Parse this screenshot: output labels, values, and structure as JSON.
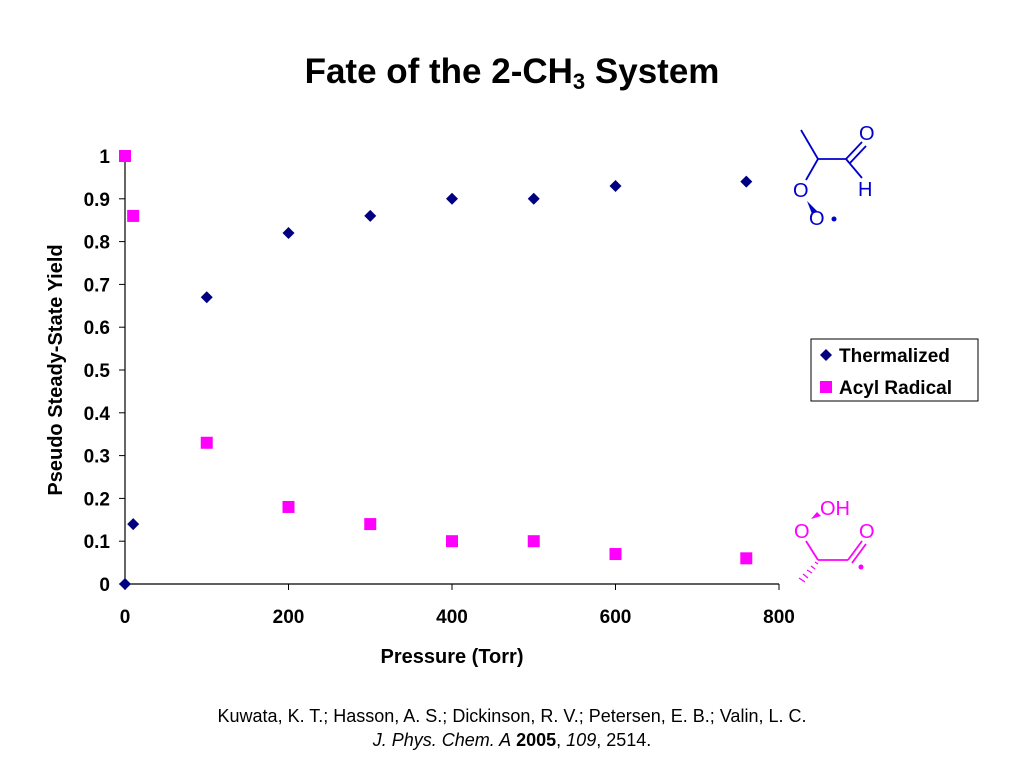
{
  "title": {
    "main": "Fate of the 2-CH",
    "subscript": "3",
    "tail": " System"
  },
  "chart_data": {
    "type": "scatter",
    "xlabel": "Pressure (Torr)",
    "ylabel": "Pseudo Steady-State Yield",
    "xlim": [
      0,
      800
    ],
    "ylim": [
      0,
      1
    ],
    "x_ticks": [
      "0",
      "200",
      "400",
      "600",
      "800"
    ],
    "y_ticks": [
      "0",
      "0.1",
      "0.2",
      "0.3",
      "0.4",
      "0.5",
      "0.6",
      "0.7",
      "0.8",
      "0.9",
      "1"
    ],
    "grid": false,
    "legend_position": "right",
    "series": [
      {
        "name": "Thermalized",
        "marker": "diamond",
        "color": "#000080",
        "points": [
          [
            0,
            0
          ],
          [
            10,
            0.14
          ],
          [
            100,
            0.67
          ],
          [
            200,
            0.82
          ],
          [
            300,
            0.86
          ],
          [
            400,
            0.9
          ],
          [
            500,
            0.9
          ],
          [
            600,
            0.93
          ],
          [
            760,
            0.94
          ]
        ]
      },
      {
        "name": "Acyl Radical",
        "marker": "square",
        "color": "#FF00FF",
        "points": [
          [
            0,
            1
          ],
          [
            10,
            0.86
          ],
          [
            100,
            0.33
          ],
          [
            200,
            0.18
          ],
          [
            300,
            0.14
          ],
          [
            400,
            0.1
          ],
          [
            500,
            0.1
          ],
          [
            600,
            0.07
          ],
          [
            760,
            0.06
          ]
        ]
      }
    ]
  },
  "structures": {
    "top": {
      "color": "#0000CC",
      "labels": [
        "O",
        "H",
        "O",
        "O"
      ]
    },
    "bottom": {
      "color": "#FF00FF",
      "labels": [
        "OH",
        "O",
        "O"
      ]
    }
  },
  "citation": {
    "line1": "Kuwata, K. T.; Hasson, A. S.; Dickinson, R. V.; Petersen, E. B.; Valin, L. C.",
    "journal": "J. Phys. Chem. A",
    "year": "2005",
    "volume": "109",
    "pages": ", 2514."
  }
}
